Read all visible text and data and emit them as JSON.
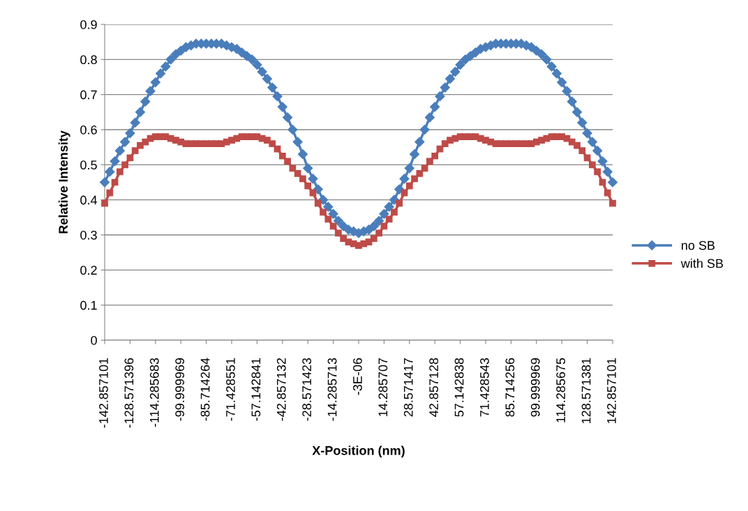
{
  "chart_data": {
    "type": "line",
    "xlabel": "X-Position (nm)",
    "ylabel": "Relative Intensity",
    "categories": [
      "-142.857101",
      null,
      null,
      null,
      null,
      "-128.571396",
      null,
      null,
      null,
      null,
      "-114.285683",
      null,
      null,
      null,
      null,
      "-99.999969",
      null,
      null,
      null,
      null,
      "-85.714264",
      null,
      null,
      null,
      null,
      "-71.428551",
      null,
      null,
      null,
      null,
      "-57.142841",
      null,
      null,
      null,
      null,
      "-42.857132",
      null,
      null,
      null,
      null,
      "-28.571423",
      null,
      null,
      null,
      null,
      "-14.285713",
      null,
      null,
      null,
      null,
      "-3E-06",
      null,
      null,
      null,
      null,
      "14.285707",
      null,
      null,
      null,
      null,
      "28.571417",
      null,
      null,
      null,
      null,
      "42.857128",
      null,
      null,
      null,
      null,
      "57.142838",
      null,
      null,
      null,
      null,
      "71.428543",
      null,
      null,
      null,
      null,
      "85.714256",
      null,
      null,
      null,
      null,
      "99.999969",
      null,
      null,
      null,
      null,
      "114.285675",
      null,
      null,
      null,
      null,
      "128.571381",
      null,
      null,
      null,
      null,
      "142.857101"
    ],
    "series": [
      {
        "name": "no SB",
        "color": "#4a7ebb",
        "marker": "diamond",
        "values": [
          0.45,
          0.48,
          0.51,
          0.54,
          0.565,
          0.59,
          0.62,
          0.65,
          0.68,
          0.71,
          0.735,
          0.76,
          0.78,
          0.8,
          0.815,
          0.825,
          0.835,
          0.84,
          0.845,
          0.845,
          0.845,
          0.845,
          0.845,
          0.845,
          0.84,
          0.835,
          0.83,
          0.82,
          0.81,
          0.8,
          0.785,
          0.765,
          0.745,
          0.72,
          0.695,
          0.665,
          0.635,
          0.6,
          0.565,
          0.53,
          0.49,
          0.46,
          0.43,
          0.4,
          0.38,
          0.36,
          0.34,
          0.325,
          0.315,
          0.31,
          0.305,
          0.31,
          0.315,
          0.325,
          0.34,
          0.36,
          0.38,
          0.4,
          0.43,
          0.46,
          0.49,
          0.53,
          0.565,
          0.6,
          0.635,
          0.665,
          0.695,
          0.72,
          0.745,
          0.765,
          0.785,
          0.8,
          0.81,
          0.82,
          0.83,
          0.835,
          0.84,
          0.845,
          0.845,
          0.845,
          0.845,
          0.845,
          0.845,
          0.84,
          0.835,
          0.825,
          0.815,
          0.8,
          0.78,
          0.76,
          0.735,
          0.71,
          0.68,
          0.65,
          0.62,
          0.59,
          0.565,
          0.54,
          0.51,
          0.48,
          0.45
        ]
      },
      {
        "name": "with SB",
        "color": "#be4b48",
        "marker": "square",
        "values": [
          0.39,
          0.42,
          0.45,
          0.48,
          0.5,
          0.52,
          0.54,
          0.555,
          0.565,
          0.575,
          0.58,
          0.58,
          0.58,
          0.575,
          0.57,
          0.565,
          0.56,
          0.56,
          0.56,
          0.56,
          0.56,
          0.56,
          0.56,
          0.56,
          0.565,
          0.57,
          0.575,
          0.58,
          0.58,
          0.58,
          0.58,
          0.575,
          0.57,
          0.56,
          0.545,
          0.525,
          0.51,
          0.49,
          0.475,
          0.46,
          0.44,
          0.42,
          0.39,
          0.365,
          0.345,
          0.325,
          0.305,
          0.29,
          0.28,
          0.275,
          0.27,
          0.275,
          0.28,
          0.29,
          0.305,
          0.325,
          0.345,
          0.365,
          0.39,
          0.42,
          0.44,
          0.46,
          0.475,
          0.49,
          0.51,
          0.525,
          0.545,
          0.56,
          0.57,
          0.575,
          0.58,
          0.58,
          0.58,
          0.58,
          0.575,
          0.57,
          0.565,
          0.56,
          0.56,
          0.56,
          0.56,
          0.56,
          0.56,
          0.56,
          0.56,
          0.565,
          0.57,
          0.575,
          0.58,
          0.58,
          0.58,
          0.575,
          0.565,
          0.555,
          0.54,
          0.52,
          0.5,
          0.48,
          0.45,
          0.42,
          0.39
        ]
      }
    ],
    "ylim": [
      0,
      0.9
    ],
    "yticks": [
      0,
      0.1,
      0.2,
      0.3,
      0.4,
      0.5,
      0.6,
      0.7,
      0.8,
      0.9
    ],
    "grid": "y",
    "legend": "right",
    "line_style": "solid"
  }
}
